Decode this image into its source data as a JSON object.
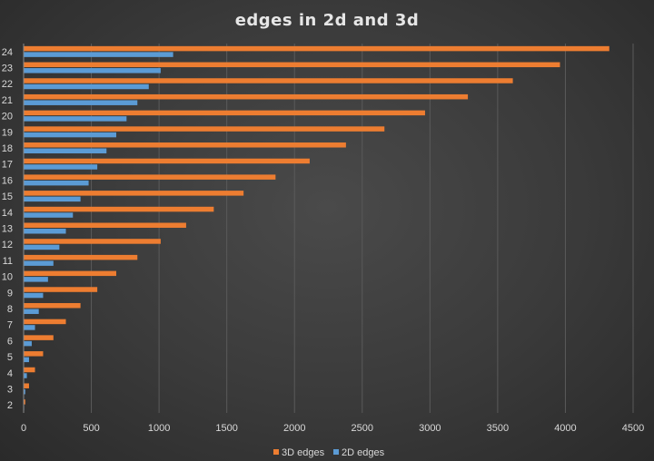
{
  "chart_data": {
    "type": "bar",
    "orientation": "horizontal",
    "title": "edges in 2d and 3d",
    "xlabel": "",
    "ylabel": "",
    "categories": [
      "2",
      "3",
      "4",
      "5",
      "6",
      "7",
      "8",
      "9",
      "10",
      "11",
      "12",
      "13",
      "14",
      "15",
      "16",
      "17",
      "18",
      "19",
      "20",
      "21",
      "22",
      "23",
      "24"
    ],
    "series": [
      {
        "name": "3D edges",
        "color": "#ed7d31",
        "values": [
          12,
          40,
          84,
          144,
          220,
          312,
          420,
          544,
          684,
          840,
          1012,
          1200,
          1404,
          1624,
          1860,
          2112,
          2380,
          2664,
          2964,
          3280,
          3612,
          3960,
          4324
        ]
      },
      {
        "name": "2D edges",
        "color": "#5b9bd5",
        "values": [
          4,
          12,
          24,
          40,
          60,
          84,
          112,
          144,
          180,
          220,
          264,
          312,
          364,
          420,
          480,
          544,
          612,
          684,
          760,
          840,
          924,
          1012,
          1104
        ]
      }
    ],
    "xlim": [
      0,
      4500
    ],
    "xticks": [
      "0",
      "500",
      "1000",
      "1500",
      "2000",
      "2500",
      "3000",
      "3500",
      "4000",
      "4500"
    ],
    "grid": true,
    "legend": "bottom"
  }
}
